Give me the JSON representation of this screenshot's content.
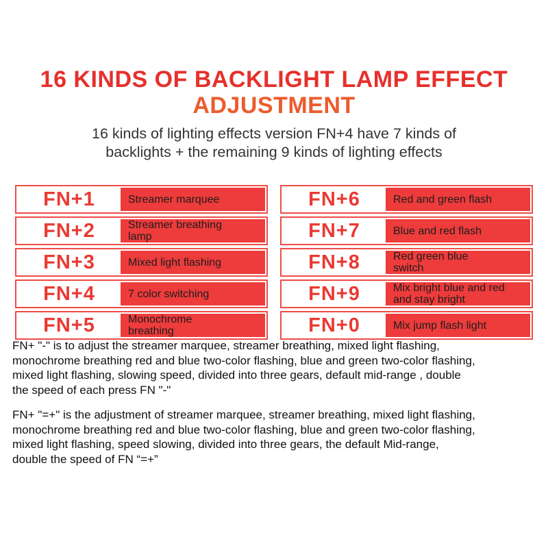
{
  "header": {
    "title_line1": "16 KINDS OF BACKLIGHT LAMP EFFECT",
    "title_line2": "ADJUSTMENT",
    "subtitle": "16 kinds of lighting effects version FN+4 have 7 kinds of\nbacklights + the remaining 9 kinds of lighting effects"
  },
  "colors": {
    "title_red": "#e6302c",
    "title_orange": "#ec5c2e",
    "cell_fill_red": "#ee3b3b",
    "cell_border_red": "#ef4b45",
    "key_text_red": "#e93a33",
    "body_text": "#111111"
  },
  "shortcut_table": {
    "left_rows": [
      {
        "key": "FN+1",
        "desc": "Streamer marquee"
      },
      {
        "key": "FN+2",
        "desc": "Streamer breathing\nlamp"
      },
      {
        "key": "FN+3",
        "desc": "Mixed light flashing"
      },
      {
        "key": "FN+4",
        "desc": "7 color switching"
      },
      {
        "key": "FN+5",
        "desc": "Monochrome\nbreathing"
      }
    ],
    "right_rows": [
      {
        "key": "FN+6",
        "desc": "Red and green flash"
      },
      {
        "key": "FN+7",
        "desc": "Blue and red flash"
      },
      {
        "key": "FN+8",
        "desc": "Red green blue\nswitch"
      },
      {
        "key": "FN+9",
        "desc": "Mix bright blue and red\nand stay bright"
      },
      {
        "key": "FN+0",
        "desc": "Mix jump flash light"
      }
    ]
  },
  "notes": {
    "paragraph1": "FN+ \"-\" is to adjust the streamer marquee, streamer breathing, mixed light flashing,\nmonochrome breathing red and blue two-color flashing, blue and green two-color flashing,\nmixed light flashing, slowing speed, divided into three gears, default mid-range , double\nthe speed of each press FN \"-\"",
    "paragraph2": "FN+ \"=+\" is the adjustment of streamer marquee, streamer breathing, mixed light flashing,\nmonochrome breathing red and blue two-color flashing, blue and green two-color flashing,\nmixed light flashing, speed slowing, divided into three gears, the default Mid-range,\ndouble the speed of FN “=+”"
  }
}
